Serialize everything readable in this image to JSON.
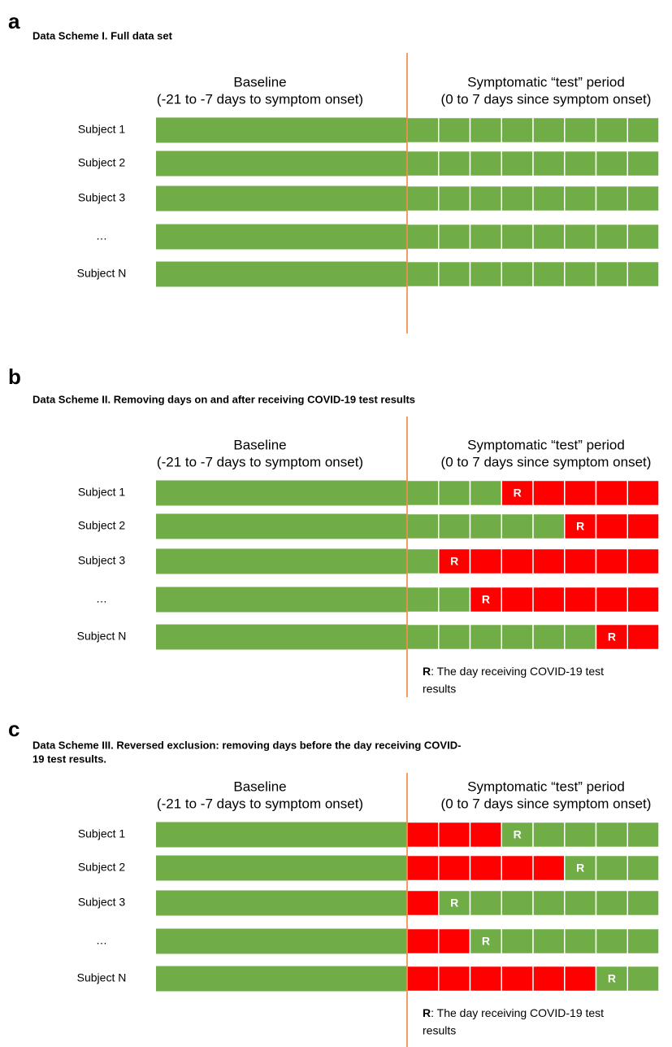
{
  "colors": {
    "kept": "#70ad47",
    "removed": "#ff0000",
    "divider": "#ed7d31"
  },
  "panels": [
    {
      "letter": "a",
      "title": [
        "Data Scheme I. Full data set"
      ],
      "baseline": [
        "Baseline",
        "(-21 to -7 days to symptom onset)"
      ],
      "test_period": [
        "Symptomatic “test” period",
        "(0 to 7 days since symptom onset)"
      ],
      "rows": [
        {
          "label": "Subject 1"
        },
        {
          "label": "Subject 2"
        },
        {
          "label": "Subject 3"
        },
        {
          "label": "…"
        },
        {
          "label": "Subject N"
        }
      ]
    },
    {
      "letter": "b",
      "title": [
        "Data Scheme II. Removing days on and after receiving COVID-19 test results"
      ],
      "baseline": [
        "Baseline",
        "(-21 to -7 days to symptom onset)"
      ],
      "test_period": [
        "Symptomatic “test” period",
        "(0 to 7 days since symptom onset)"
      ],
      "removed": "on_and_after",
      "rows": [
        {
          "label": "Subject 1",
          "marker": "R",
          "r_day": 3
        },
        {
          "label": "Subject 2",
          "marker": "R",
          "r_day": 5
        },
        {
          "label": "Subject 3",
          "marker": "R",
          "r_day": 1
        },
        {
          "label": "…",
          "marker": "R",
          "r_day": 2
        },
        {
          "label": "Subject N",
          "marker": "R",
          "r_day": 6
        }
      ],
      "legend": {
        "key": "R",
        "text": [
          ": The day receiving COVID-19 test",
          "results"
        ]
      }
    },
    {
      "letter": "c",
      "title": [
        "Data Scheme III. Reversed exclusion: removing days before the day receiving COVID-",
        "19 test results."
      ],
      "baseline": [
        "Baseline",
        "(-21 to -7 days to symptom onset)"
      ],
      "test_period": [
        "Symptomatic “test” period",
        "(0 to 7 days since symptom onset)"
      ],
      "removed": "before",
      "rows": [
        {
          "label": "Subject 1",
          "marker": "R",
          "r_day": 3
        },
        {
          "label": "Subject 2",
          "marker": "R",
          "r_day": 5
        },
        {
          "label": "Subject 3",
          "marker": "R",
          "r_day": 1
        },
        {
          "label": "…",
          "marker": "R",
          "r_day": 2
        },
        {
          "label": "Subject N",
          "marker": "R",
          "r_day": 6
        }
      ],
      "legend": {
        "key": "R",
        "text": [
          ": The day receiving COVID-19 test",
          "results"
        ]
      }
    }
  ]
}
